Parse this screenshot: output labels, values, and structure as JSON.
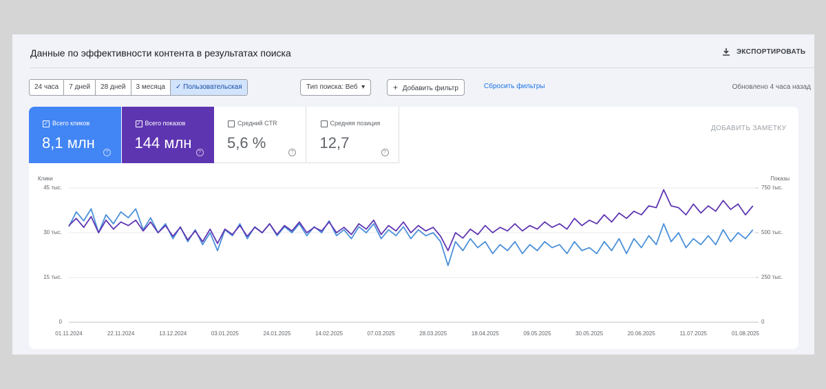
{
  "header": {
    "title": "Данные по эффективности контента в результатах поиска",
    "export": "ЭКСПОРТИРОВАТЬ"
  },
  "toolbar": {
    "ranges": [
      "24 часа",
      "7 дней",
      "28 дней",
      "3 месяца",
      "Пользовательская"
    ],
    "selected_range": 4,
    "search_type": "Тип поиска: Веб",
    "add_filter": "Добавить фильтр",
    "reset": "Сбросить фильтры",
    "updated": "Обновлено 4 часа назад"
  },
  "metrics": [
    {
      "label": "Всего кликов",
      "value": "8,1 млн",
      "checked": true,
      "color": "#4285f4"
    },
    {
      "label": "Всего показов",
      "value": "144 млн",
      "checked": true,
      "color": "#5e35b1"
    },
    {
      "label": "Средний CTR",
      "value": "5,6 %",
      "checked": false,
      "color": "#ffffff"
    },
    {
      "label": "Средняя позиция",
      "value": "12,7",
      "checked": false,
      "color": "#ffffff"
    }
  ],
  "add_note": "ДОБАВИТЬ ЗАМЕТКУ",
  "chart_data": {
    "type": "line",
    "y_label": "Клики",
    "y2_label": "Показы",
    "categories": [
      "01.11.2024",
      null,
      null,
      null,
      null,
      null,
      null,
      "22.11.2024",
      null,
      null,
      null,
      null,
      null,
      null,
      "13.12.2024",
      null,
      null,
      null,
      null,
      null,
      null,
      "03.01.2025",
      null,
      null,
      null,
      null,
      null,
      null,
      "24.01.2025",
      null,
      null,
      null,
      null,
      null,
      null,
      "14.02.2025",
      null,
      null,
      null,
      null,
      null,
      null,
      "07.03.2025",
      null,
      null,
      null,
      null,
      null,
      null,
      "28.03.2025",
      null,
      null,
      null,
      null,
      null,
      null,
      "18.04.2025",
      null,
      null,
      null,
      null,
      null,
      null,
      "09.05.2025",
      null,
      null,
      null,
      null,
      null,
      null,
      "30.05.2025",
      null,
      null,
      null,
      null,
      null,
      null,
      "20.06.2025",
      null,
      null,
      null,
      null,
      null,
      null,
      "11.07.2025",
      null,
      null,
      null,
      null,
      null,
      null,
      "01.08.2025",
      null
    ],
    "series": [
      {
        "color": "#4a90d9",
        "axis": "y",
        "values": [
          32000,
          37000,
          34000,
          38000,
          30000,
          36000,
          33000,
          37000,
          35000,
          38000,
          31000,
          35000,
          30000,
          33000,
          28000,
          32000,
          27000,
          31000,
          26000,
          30000,
          24000,
          31000,
          29000,
          33000,
          28000,
          32000,
          30000,
          33000,
          29000,
          32000,
          30000,
          33000,
          29000,
          32000,
          30000,
          34000,
          29000,
          31000,
          28000,
          32000,
          30000,
          33000,
          28000,
          31000,
          29000,
          32000,
          28000,
          31000,
          29000,
          30000,
          27000,
          19000,
          27000,
          24000,
          28000,
          25000,
          27000,
          23000,
          26000,
          24000,
          27000,
          23000,
          26000,
          24000,
          27000,
          25000,
          26000,
          23000,
          27000,
          24000,
          25000,
          23000,
          27000,
          24000,
          28000,
          23000,
          28000,
          25000,
          29000,
          26000,
          33000,
          27000,
          30000,
          25000,
          28000,
          26000,
          29000,
          26000,
          31000,
          27000,
          30000,
          28000,
          31000
        ]
      },
      {
        "color": "#5e35b1",
        "axis": "y2",
        "values": [
          540000,
          580000,
          530000,
          590000,
          500000,
          570000,
          520000,
          560000,
          540000,
          570000,
          510000,
          560000,
          500000,
          540000,
          480000,
          530000,
          460000,
          510000,
          450000,
          520000,
          440000,
          520000,
          490000,
          540000,
          480000,
          530000,
          500000,
          550000,
          490000,
          540000,
          510000,
          560000,
          500000,
          530000,
          510000,
          560000,
          500000,
          530000,
          490000,
          550000,
          520000,
          570000,
          490000,
          540000,
          510000,
          560000,
          500000,
          540000,
          510000,
          530000,
          480000,
          400000,
          500000,
          470000,
          520000,
          490000,
          540000,
          500000,
          530000,
          510000,
          550000,
          510000,
          540000,
          520000,
          560000,
          530000,
          550000,
          520000,
          580000,
          540000,
          570000,
          550000,
          600000,
          560000,
          610000,
          580000,
          620000,
          600000,
          650000,
          640000,
          740000,
          650000,
          640000,
          600000,
          660000,
          610000,
          650000,
          620000,
          680000,
          630000,
          660000,
          600000,
          650000
        ]
      }
    ],
    "ylim": [
      0,
      45000
    ],
    "yticks": [
      0,
      {
        "value": 15000,
        "label": "15 тыс."
      },
      {
        "value": 30000,
        "label": "30 тыс."
      },
      {
        "value": 45000,
        "label": "45 тыс."
      }
    ],
    "y2lim": [
      0,
      750000
    ],
    "y2ticks": [
      0,
      {
        "value": 250000,
        "label": "250 тыс."
      },
      {
        "value": 500000,
        "label": "500 тыс."
      },
      {
        "value": 750000,
        "label": "750 тыс."
      }
    ],
    "grid": true
  }
}
